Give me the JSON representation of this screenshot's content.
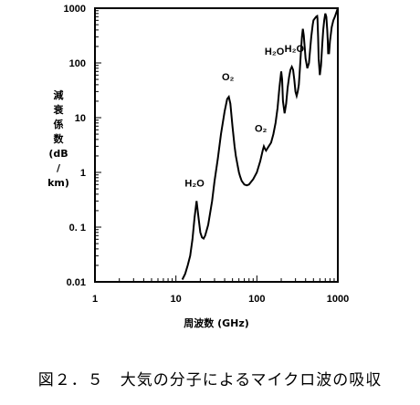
{
  "chart_data": {
    "type": "line",
    "xlabel": "周波数 (GHz)",
    "ylabel": [
      "減",
      "衰",
      "係",
      "数",
      "(dB",
      "/",
      "km)"
    ],
    "xscale": "log",
    "yscale": "log",
    "xlim": [
      1,
      1000
    ],
    "ylim": [
      0.01,
      1000
    ],
    "x_ticks": [
      "1",
      "10",
      "100",
      "1000"
    ],
    "y_ticks": [
      "0.01",
      "0. 1",
      "1",
      "10",
      "100",
      "1000"
    ],
    "series": [
      {
        "x": [
          12,
          13,
          14,
          15,
          16,
          17,
          18,
          19,
          20,
          21,
          22,
          23,
          25,
          28,
          30,
          33,
          36,
          40,
          43,
          45,
          47,
          50,
          53,
          55,
          58,
          60,
          62,
          65,
          70,
          75,
          80,
          90,
          100,
          110,
          118,
          122,
          126,
          130,
          140,
          150,
          160,
          170,
          180,
          190,
          200,
          205,
          210,
          220,
          230,
          240,
          250,
          260,
          270,
          280,
          290,
          300,
          310,
          320,
          330,
          340,
          350,
          360,
          370,
          380,
          400,
          420,
          440,
          450,
          470,
          490,
          500,
          520,
          540,
          556,
          560,
          570,
          580,
          600,
          620,
          640,
          660,
          680,
          700,
          720,
          740,
          752,
          760,
          780,
          800,
          840,
          880,
          920,
          950,
          1000
        ],
        "y": [
          0.011,
          0.014,
          0.02,
          0.03,
          0.06,
          0.15,
          0.3,
          0.15,
          0.08,
          0.065,
          0.062,
          0.07,
          0.11,
          0.3,
          0.7,
          1.8,
          5,
          13,
          22,
          24,
          18,
          7,
          3,
          2,
          1.3,
          1.0,
          0.85,
          0.7,
          0.6,
          0.58,
          0.6,
          0.75,
          1.0,
          1.6,
          2.5,
          3.0,
          2.7,
          2.5,
          3.0,
          3.5,
          5,
          8,
          15,
          35,
          70,
          50,
          20,
          12,
          18,
          35,
          55,
          75,
          85,
          75,
          50,
          30,
          25,
          30,
          40,
          80,
          160,
          300,
          420,
          320,
          120,
          80,
          100,
          150,
          300,
          500,
          600,
          650,
          700,
          720,
          650,
          300,
          120,
          60,
          90,
          200,
          400,
          600,
          800,
          700,
          400,
          250,
          150,
          150,
          250,
          450,
          600,
          700,
          800,
          1000
        ]
      }
    ],
    "annotations": [
      {
        "text": "H₂O",
        "x": 17,
        "y": 0.55
      },
      {
        "text": "O₂",
        "x": 44,
        "y": 48
      },
      {
        "text": "O₂",
        "x": 112,
        "y": 5.5
      },
      {
        "text": "H₂O",
        "x": 165,
        "y": 140
      },
      {
        "text": "H₂O",
        "x": 290,
        "y": 160
      }
    ],
    "grid": false
  },
  "caption": "図２．５　大気の分子によるマイクロ波の吸収"
}
